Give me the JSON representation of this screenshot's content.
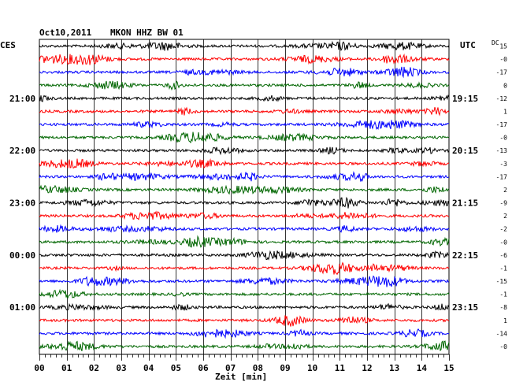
{
  "header": {
    "date": "Oct10,2011",
    "station": "MKON HHZ BW 01",
    "left_tz": "CES",
    "right_tz": "UTC",
    "dc_label": "DC"
  },
  "chart_data": {
    "type": "line",
    "title": "Oct10,2011   MKON HHZ BW 01",
    "xlabel": "Zeit [min]",
    "xlim": [
      0,
      15
    ],
    "x_ticks": [
      "00",
      "01",
      "02",
      "03",
      "04",
      "05",
      "06",
      "07",
      "08",
      "09",
      "10",
      "11",
      "12",
      "13",
      "14",
      "15"
    ],
    "grid": true,
    "series_colors": [
      "#000000",
      "#ff0000",
      "#0000ff",
      "#006600"
    ],
    "left_time_labels": [
      {
        "row": 4,
        "text": "21:00"
      },
      {
        "row": 8,
        "text": "22:00"
      },
      {
        "row": 12,
        "text": "23:00"
      },
      {
        "row": 16,
        "text": "00:00"
      },
      {
        "row": 20,
        "text": "01:00"
      }
    ],
    "right_time_labels": [
      {
        "row": 4,
        "text": "19:15"
      },
      {
        "row": 8,
        "text": "20:15"
      },
      {
        "row": 12,
        "text": "21:15"
      },
      {
        "row": 16,
        "text": "22:15"
      },
      {
        "row": 20,
        "text": "23:15"
      }
    ],
    "dc_offsets": [
      "15",
      "-0",
      "-17",
      "0",
      "-12",
      "1",
      "-17",
      "-0",
      "-13",
      "-3",
      "-17",
      "2",
      "-9",
      "2",
      "-2",
      "-0",
      "-6",
      "-1",
      "-15",
      "-1",
      "-8",
      "1",
      "-14",
      "-0"
    ],
    "traces": 24
  }
}
